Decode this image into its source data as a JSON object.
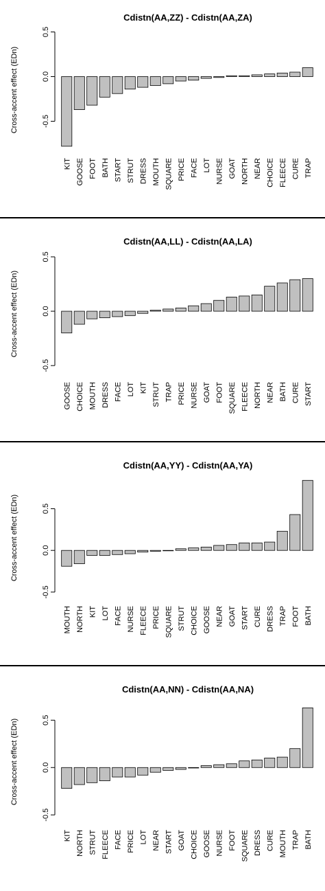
{
  "chart_data": [
    {
      "type": "bar",
      "title": "Cdistn(AA,ZZ) - Cdistn(AA,ZA)",
      "ylabel": "Cross-accent effect (EDn)",
      "xlabel": "",
      "ylim": [
        -0.85,
        0.55
      ],
      "yticks": [
        -0.5,
        0.0,
        0.5
      ],
      "ytick_labels": [
        "-0.5",
        "0.0",
        "0.5"
      ],
      "categories": [
        "KIT",
        "GOOSE",
        "FOOT",
        "BATH",
        "START",
        "STRUT",
        "DRESS",
        "MOUTH",
        "SQUARE",
        "PRICE",
        "FACE",
        "LOT",
        "NURSE",
        "GOAT",
        "NORTH",
        "NEAR",
        "CHOICE",
        "FLEECE",
        "CURE",
        "TRAP"
      ],
      "values": [
        -0.78,
        -0.37,
        -0.32,
        -0.23,
        -0.19,
        -0.14,
        -0.12,
        -0.1,
        -0.08,
        -0.05,
        -0.04,
        -0.02,
        -0.01,
        0.01,
        0.01,
        0.02,
        0.03,
        0.04,
        0.05,
        0.1
      ],
      "grid": false,
      "bar_color": "#c0c0c0"
    },
    {
      "type": "bar",
      "title": "Cdistn(AA,LL) - Cdistn(AA,LA)",
      "ylabel": "Cross-accent effect (EDn)",
      "xlabel": "",
      "ylim": [
        -0.6,
        0.55
      ],
      "yticks": [
        -0.5,
        0.0,
        0.5
      ],
      "ytick_labels": [
        "-0.5",
        "0.0",
        "0.5"
      ],
      "categories": [
        "GOOSE",
        "CHOICE",
        "MOUTH",
        "DRESS",
        "FACE",
        "LOT",
        "KIT",
        "STRUT",
        "TRAP",
        "PRICE",
        "NURSE",
        "GOAT",
        "FOOT",
        "SQUARE",
        "FLEECE",
        "NORTH",
        "NEAR",
        "BATH",
        "CURE",
        "START"
      ],
      "values": [
        -0.2,
        -0.12,
        -0.07,
        -0.06,
        -0.05,
        -0.04,
        -0.02,
        0.01,
        0.02,
        0.03,
        0.05,
        0.07,
        0.1,
        0.13,
        0.14,
        0.15,
        0.23,
        0.26,
        0.29,
        0.3
      ],
      "grid": false,
      "bar_color": "#c0c0c0"
    },
    {
      "type": "bar",
      "title": "Cdistn(AA,YY) - Cdistn(AA,YA)",
      "ylabel": "Cross-accent effect (EDn)",
      "xlabel": "",
      "ylim": [
        -0.6,
        0.9
      ],
      "yticks": [
        -0.5,
        0.0,
        0.5
      ],
      "ytick_labels": [
        "-0.5",
        "0.0",
        "0.5"
      ],
      "categories": [
        "MOUTH",
        "NORTH",
        "KIT",
        "LOT",
        "FACE",
        "NURSE",
        "FLEECE",
        "PRICE",
        "SQUARE",
        "STRUT",
        "CHOICE",
        "GOOSE",
        "NEAR",
        "GOAT",
        "START",
        "CURE",
        "DRESS",
        "TRAP",
        "FOOT",
        "BATH"
      ],
      "values": [
        -0.19,
        -0.16,
        -0.06,
        -0.06,
        -0.05,
        -0.04,
        -0.02,
        -0.01,
        -0.005,
        0.02,
        0.03,
        0.04,
        0.06,
        0.07,
        0.09,
        0.09,
        0.1,
        0.23,
        0.43,
        0.84
      ],
      "grid": false,
      "bar_color": "#c0c0c0"
    },
    {
      "type": "bar",
      "title": "Cdistn(AA,NN) - Cdistn(AA,NA)",
      "ylabel": "Cross-accent effect (EDn)",
      "xlabel": "",
      "ylim": [
        -0.6,
        0.72
      ],
      "yticks": [
        -0.5,
        0.0,
        0.5
      ],
      "ytick_labels": [
        "-0.5",
        "0.0",
        "0.5"
      ],
      "categories": [
        "KIT",
        "NORTH",
        "STRUT",
        "FLEECE",
        "FACE",
        "PRICE",
        "LOT",
        "NEAR",
        "START",
        "GOAT",
        "CHOICE",
        "GOOSE",
        "NURSE",
        "FOOT",
        "SQUARE",
        "DRESS",
        "CURE",
        "MOUTH",
        "TRAP",
        "BATH"
      ],
      "values": [
        -0.22,
        -0.18,
        -0.16,
        -0.14,
        -0.1,
        -0.1,
        -0.08,
        -0.05,
        -0.03,
        -0.02,
        -0.005,
        0.02,
        0.03,
        0.04,
        0.07,
        0.08,
        0.1,
        0.11,
        0.2,
        0.63
      ],
      "grid": false,
      "bar_color": "#c0c0c0"
    }
  ]
}
